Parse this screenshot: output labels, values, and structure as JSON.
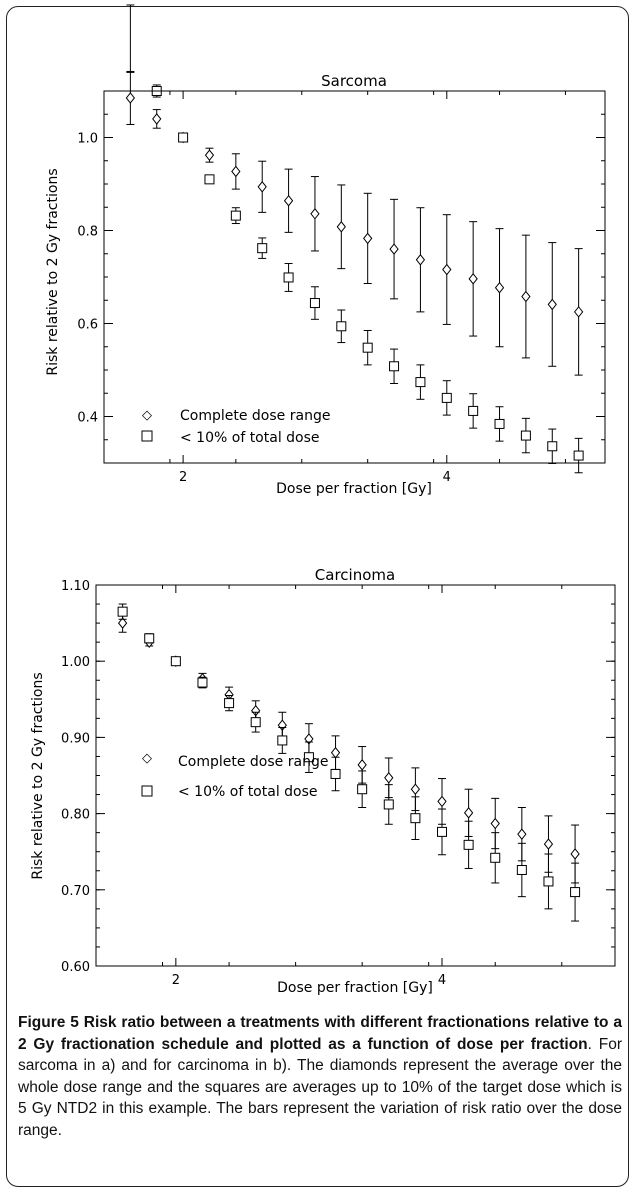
{
  "chart_data": [
    {
      "type": "scatter",
      "title": "Sarcoma",
      "xlabel": "Dose per fraction [Gy]",
      "ylabel": "Risk relative to 2 Gy fractions",
      "xlim": [
        1.4,
        5.2
      ],
      "ylim": [
        0.3,
        1.1
      ],
      "xticks": [
        2,
        4
      ],
      "yticks": [
        0.4,
        0.6,
        0.8,
        1.0
      ],
      "xticklabels": [
        "2",
        "4"
      ],
      "yticklabels": [
        "0.4",
        "0.6",
        "0.8",
        "1.0"
      ],
      "legend_position": "bottom-left",
      "series": [
        {
          "name": "Complete dose range",
          "marker": "diamond",
          "x": [
            1.6,
            1.8,
            2.0,
            2.2,
            2.4,
            2.6,
            2.8,
            3.0,
            3.2,
            3.4,
            3.6,
            3.8,
            4.0,
            4.2,
            4.4,
            4.6,
            4.8,
            5.0
          ],
          "y": [
            1.085,
            1.04,
            1.0,
            0.962,
            0.927,
            0.894,
            0.864,
            0.836,
            0.808,
            0.783,
            0.76,
            0.737,
            0.716,
            0.696,
            0.677,
            0.658,
            0.641,
            0.625
          ],
          "err": [
            0.057,
            0.02,
            0.004,
            0.015,
            0.038,
            0.055,
            0.068,
            0.08,
            0.09,
            0.097,
            0.107,
            0.112,
            0.118,
            0.123,
            0.127,
            0.132,
            0.133,
            0.136
          ]
        },
        {
          "name": "< 10% of total dose",
          "marker": "square",
          "x": [
            1.8,
            2.0,
            2.2,
            2.4,
            2.6,
            2.8,
            3.0,
            3.2,
            3.4,
            3.6,
            3.8,
            4.0,
            4.2,
            4.4,
            4.6,
            4.8,
            5.0
          ],
          "y": [
            1.1,
            1.0,
            0.91,
            0.832,
            0.762,
            0.699,
            0.644,
            0.594,
            0.548,
            0.508,
            0.474,
            0.44,
            0.412,
            0.384,
            0.359,
            0.336,
            0.316
          ],
          "err": [
            0.013,
            0.004,
            0.008,
            0.017,
            0.022,
            0.03,
            0.035,
            0.035,
            0.037,
            0.037,
            0.037,
            0.037,
            0.037,
            0.037,
            0.037,
            0.037,
            0.037
          ]
        }
      ],
      "outlier_errorbar": {
        "x": 1.6,
        "y_low": 1.14,
        "y_high": 1.285
      }
    },
    {
      "type": "scatter",
      "title": "Carcinoma",
      "xlabel": "Dose per fraction [Gy]",
      "ylabel": "Risk relative to 2 Gy fractions",
      "xlim": [
        1.4,
        5.3
      ],
      "ylim": [
        0.6,
        1.1
      ],
      "xticks": [
        2,
        4
      ],
      "yticks": [
        0.6,
        0.7,
        0.8,
        0.9,
        1.0,
        1.1
      ],
      "xticklabels": [
        "2",
        "4"
      ],
      "yticklabels": [
        "0.60",
        "0.70",
        "0.80",
        "0.90",
        "1.00",
        "1.10"
      ],
      "legend_position": "bottom-left",
      "series": [
        {
          "name": "Complete dose range",
          "marker": "diamond",
          "x": [
            1.6,
            1.8,
            2.0,
            2.2,
            2.4,
            2.6,
            2.8,
            3.0,
            3.2,
            3.4,
            3.6,
            3.8,
            4.0,
            4.2,
            4.4,
            4.6,
            4.8,
            5.0
          ],
          "y": [
            1.05,
            1.025,
            1.0,
            0.977,
            0.956,
            0.935,
            0.916,
            0.898,
            0.88,
            0.864,
            0.847,
            0.832,
            0.816,
            0.801,
            0.787,
            0.773,
            0.76,
            0.747
          ],
          "err": [
            0.012,
            0.005,
            0.002,
            0.007,
            0.01,
            0.013,
            0.017,
            0.02,
            0.022,
            0.024,
            0.026,
            0.028,
            0.03,
            0.031,
            0.033,
            0.035,
            0.037,
            0.038
          ]
        },
        {
          "name": "< 10% of total dose",
          "marker": "square",
          "x": [
            1.6,
            1.8,
            2.0,
            2.2,
            2.4,
            2.6,
            2.8,
            3.0,
            3.2,
            3.4,
            3.6,
            3.8,
            4.0,
            4.2,
            4.4,
            4.6,
            4.8,
            5.0
          ],
          "y": [
            1.065,
            1.03,
            1.0,
            0.972,
            0.945,
            0.92,
            0.896,
            0.874,
            0.852,
            0.832,
            0.812,
            0.794,
            0.776,
            0.759,
            0.742,
            0.726,
            0.711,
            0.697
          ],
          "err": [
            0.01,
            0.006,
            0.002,
            0.007,
            0.01,
            0.013,
            0.017,
            0.02,
            0.022,
            0.024,
            0.026,
            0.028,
            0.03,
            0.031,
            0.033,
            0.035,
            0.036,
            0.038
          ]
        }
      ]
    }
  ],
  "caption": {
    "label": "Figure 5",
    "title": "Risk ratio between a treatments with different fractionations relative to a 2 Gy fractionation schedule and plotted as a function of dose per fraction",
    "body": ". For sarcoma in a) and for carcinoma in b). The diamonds represent the average over the whole dose range and the squares are averages up to 10% of the target dose which is 5 Gy NTD2 in this example. The bars represent the variation of risk ratio over the dose range."
  }
}
